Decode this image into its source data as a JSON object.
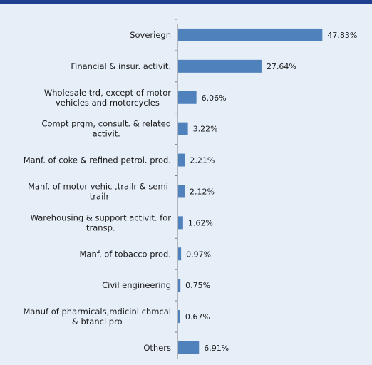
{
  "chart_data": {
    "type": "bar",
    "orientation": "horizontal",
    "categories": [
      [
        "Soveriegn"
      ],
      [
        "Financial & insur. activit."
      ],
      [
        "Wholesale trd, except of motor",
        "vehicles and motorcycles"
      ],
      [
        "Compt prgm, consult. & related",
        "activit."
      ],
      [
        "Manf. of coke & refined petrol. prod."
      ],
      [
        "Manf. of motor vehic ,trailr & semi-",
        "trailr"
      ],
      [
        "Warehousing & support activit. for",
        "transp."
      ],
      [
        "Manf. of tobacco prod."
      ],
      [
        "Civil engineering"
      ],
      [
        "Manuf of pharmicals,mdicinl chmcal",
        "& btancl pro"
      ],
      [
        "Others"
      ]
    ],
    "values": [
      47.83,
      27.64,
      6.06,
      3.22,
      2.21,
      2.12,
      1.62,
      0.97,
      0.75,
      0.67,
      6.91
    ],
    "value_labels": [
      "47.83%",
      "27.64%",
      "6.06%",
      "3.22%",
      "2.21%",
      "2.12%",
      "1.62%",
      "0.97%",
      "0.75%",
      "0.67%",
      "6.91%"
    ],
    "bar_color": "#4f81bd",
    "axis_color": "#7f7f7f",
    "xlim": [
      0,
      52
    ],
    "grid": false,
    "legend": "none"
  }
}
